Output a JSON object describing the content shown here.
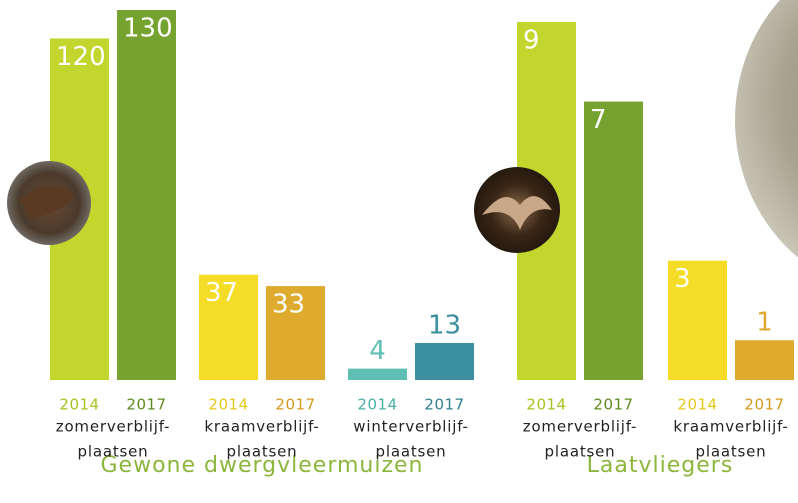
{
  "chart_data": [
    {
      "type": "grouped-bar",
      "title": "Gewone dwergvleermuizen",
      "groups": [
        {
          "label": [
            "zomerverblijf-",
            "plaatsen"
          ],
          "bars": [
            {
              "year": "2014",
              "value": 120,
              "color": "#c2d62e",
              "year_color": "#a9c21e"
            },
            {
              "year": "2017",
              "value": 130,
              "color": "#76a22f",
              "year_color": "#5f8a1f"
            }
          ]
        },
        {
          "label": [
            "kraamverblijf-",
            "plaatsen"
          ],
          "bars": [
            {
              "year": "2014",
              "value": 37,
              "color": "#f5dc27",
              "year_color": "#e8c81a"
            },
            {
              "year": "2017",
              "value": 33,
              "color": "#dfab2f",
              "year_color": "#d39a1e"
            }
          ]
        },
        {
          "label": [
            "winterverblijf-",
            "plaatsen"
          ],
          "bars": [
            {
              "year": "2014",
              "value": 4,
              "color": "#5fbfb5",
              "year_color": "#4aaea4"
            },
            {
              "year": "2017",
              "value": 13,
              "color": "#3b8f9f",
              "year_color": "#2f7f8f"
            }
          ]
        }
      ]
    },
    {
      "type": "grouped-bar",
      "title": "Laatvliegers",
      "groups": [
        {
          "label": [
            "zomerverblijf-",
            "plaatsen"
          ],
          "bars": [
            {
              "year": "2014",
              "value": 9,
              "color": "#c2d62e",
              "year_color": "#a9c21e"
            },
            {
              "year": "2017",
              "value": 7,
              "color": "#76a22f",
              "year_color": "#5f8a1f"
            }
          ]
        },
        {
          "label": [
            "kraamverblijf-",
            "plaatsen"
          ],
          "bars": [
            {
              "year": "2014",
              "value": 3,
              "color": "#f5dc27",
              "year_color": "#e8c81a"
            },
            {
              "year": "2017",
              "value": 1,
              "color": "#dfab2f",
              "year_color": "#d39a1e"
            }
          ]
        }
      ]
    }
  ]
}
